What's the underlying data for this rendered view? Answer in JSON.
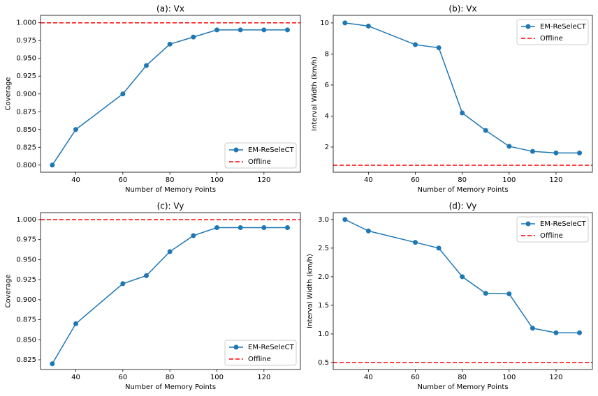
{
  "chart_data": [
    {
      "type": "line",
      "title": "(a): Vx",
      "xlabel": "Number of Memory Points",
      "ylabel": "Coverage",
      "x": [
        30,
        40,
        60,
        70,
        80,
        90,
        100,
        110,
        120,
        130
      ],
      "series": [
        {
          "name": "EM-ReSeleCT",
          "color": "#1f77b4",
          "values": [
            0.8,
            0.85,
            0.9,
            0.94,
            0.97,
            0.98,
            0.99,
            0.99,
            0.99,
            0.99
          ]
        }
      ],
      "reference": {
        "name": "Offline",
        "color": "#ff0000",
        "value": 1.0
      },
      "xlim": [
        25,
        135.5
      ],
      "ylim": [
        0.79,
        1.0105
      ],
      "xticks": [
        40,
        60,
        80,
        100,
        120
      ],
      "yticks": [
        {
          "value": 0.8,
          "label": "0.800"
        },
        {
          "value": 0.825,
          "label": "0.825"
        },
        {
          "value": 0.85,
          "label": "0.850"
        },
        {
          "value": 0.875,
          "label": "0.875"
        },
        {
          "value": 0.9,
          "label": "0.900"
        },
        {
          "value": 0.925,
          "label": "0.925"
        },
        {
          "value": 0.95,
          "label": "0.950"
        },
        {
          "value": 0.975,
          "label": "0.975"
        },
        {
          "value": 1.0,
          "label": "1.000"
        }
      ],
      "legend": "lower right"
    },
    {
      "type": "line",
      "title": "(b): Vx",
      "xlabel": "Number of Memory Points",
      "ylabel": "Interval Width (km/h)",
      "x": [
        30,
        40,
        60,
        70,
        80,
        90,
        100,
        110,
        120,
        130
      ],
      "series": [
        {
          "name": "EM-ReSeleCT",
          "color": "#1f77b4",
          "values": [
            10.0,
            9.8,
            8.6,
            8.4,
            4.2,
            3.07,
            2.05,
            1.72,
            1.62,
            1.62
          ]
        }
      ],
      "reference": {
        "name": "Offline",
        "color": "#ff0000",
        "value": 0.83
      },
      "xlim": [
        25,
        135.5
      ],
      "ylim": [
        0.38,
        10.49
      ],
      "xticks": [
        40,
        60,
        80,
        100,
        120
      ],
      "yticks": [
        2,
        4,
        6,
        8,
        10
      ],
      "legend": "upper right"
    },
    {
      "type": "line",
      "title": "(c): Vy",
      "xlabel": "Number of Memory Points",
      "ylabel": "Coverage",
      "x": [
        30,
        40,
        60,
        70,
        80,
        90,
        100,
        110,
        120,
        130
      ],
      "series": [
        {
          "name": "EM-ReSeleCT",
          "color": "#1f77b4",
          "values": [
            0.82,
            0.87,
            0.92,
            0.93,
            0.96,
            0.98,
            0.99,
            0.99,
            0.99,
            0.99
          ]
        }
      ],
      "reference": {
        "name": "Offline",
        "color": "#ff0000",
        "value": 1.0
      },
      "xlim": [
        25,
        135.5
      ],
      "ylim": [
        0.8128,
        1.0087
      ],
      "xticks": [
        40,
        60,
        80,
        100,
        120
      ],
      "yticks": [
        {
          "value": 0.825,
          "label": "0.825"
        },
        {
          "value": 0.85,
          "label": "0.850"
        },
        {
          "value": 0.875,
          "label": "0.875"
        },
        {
          "value": 0.9,
          "label": "0.900"
        },
        {
          "value": 0.925,
          "label": "0.925"
        },
        {
          "value": 0.95,
          "label": "0.950"
        },
        {
          "value": 0.975,
          "label": "0.975"
        },
        {
          "value": 1.0,
          "label": "1.000"
        }
      ],
      "legend": "lower right"
    },
    {
      "type": "line",
      "title": "(d): Vy",
      "xlabel": "Number of Memory Points",
      "ylabel": "Interval Width (km/h)",
      "x": [
        30,
        40,
        60,
        70,
        80,
        90,
        100,
        110,
        120,
        130
      ],
      "series": [
        {
          "name": "EM-ReSeleCT",
          "color": "#1f77b4",
          "values": [
            3.0,
            2.8,
            2.6,
            2.5,
            2.0,
            1.71,
            1.7,
            1.1,
            1.02,
            1.02
          ]
        }
      ],
      "reference": {
        "name": "Offline",
        "color": "#ff0000",
        "value": 0.5
      },
      "xlim": [
        25,
        135.5
      ],
      "ylim": [
        0.378,
        3.12
      ],
      "xticks": [
        40,
        60,
        80,
        100,
        120
      ],
      "yticks": [
        0.5,
        {
          "value": 1.0,
          "label": "1.0"
        },
        1.5,
        {
          "value": 2.0,
          "label": "2.0"
        },
        2.5,
        {
          "value": 3.0,
          "label": "3.0"
        }
      ],
      "legend": "upper right"
    }
  ]
}
